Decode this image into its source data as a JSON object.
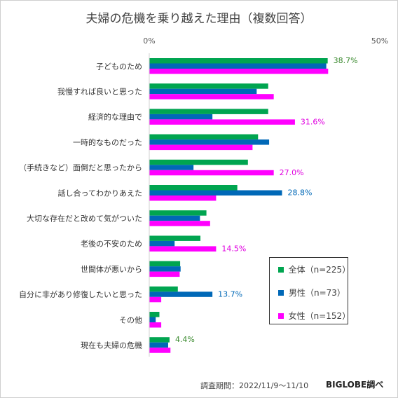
{
  "chart_data": {
    "type": "bar",
    "orientation": "horizontal",
    "title": "夫婦の危機を乗り越えた理由（複数回答）",
    "xlim": [
      0,
      50
    ],
    "x_ticks": [
      "0%",
      "50%"
    ],
    "grid": false,
    "legend_position": "bottom-right",
    "categories": [
      "子どものため",
      "我慢すれば良いと思った",
      "経済的な理由で",
      "一時的なものだった",
      "（手続きなど）面倒だと思ったから",
      "話し合ってわかりあえた",
      "大切な存在だと改めて気がついた",
      "老後の不安のため",
      "世間体が悪いから",
      "自分に非があり修復したいと思った",
      "その他",
      "現在も夫婦の危機"
    ],
    "series": [
      {
        "name": "全体（n=225）",
        "color": "#00a550",
        "values": [
          38.7,
          25.8,
          25.8,
          23.6,
          21.4,
          19.1,
          12.4,
          11.1,
          6.7,
          6.2,
          2.2,
          4.4
        ],
        "labels": [
          "38.7%",
          "",
          "",
          "",
          "",
          "",
          "",
          "",
          "",
          "",
          "",
          "4.4%"
        ]
      },
      {
        "name": "男性（n=73）",
        "color": "#0068b7",
        "values": [
          38.4,
          23.3,
          13.7,
          26.0,
          9.6,
          28.8,
          11.0,
          5.5,
          6.8,
          13.7,
          1.4,
          4.1
        ],
        "labels": [
          "",
          "",
          "",
          "",
          "",
          "28.8%",
          "",
          "",
          "",
          "13.7%",
          "",
          ""
        ]
      },
      {
        "name": "女性（n=152）",
        "color": "#ff00ff",
        "values": [
          38.8,
          27.0,
          31.6,
          22.4,
          27.0,
          14.5,
          13.2,
          14.5,
          6.6,
          2.6,
          2.6,
          4.6
        ],
        "labels": [
          "",
          "",
          "31.6%",
          "",
          "27.0%",
          "",
          "",
          "14.5%",
          "",
          "",
          "",
          ""
        ]
      }
    ],
    "label_colors": [
      "#3a8a2e",
      "#0068b7",
      "#e000e0"
    ]
  },
  "footer": {
    "period": "調査期間：2022/11/9〜11/10",
    "source": "BIGLOBE調べ"
  }
}
